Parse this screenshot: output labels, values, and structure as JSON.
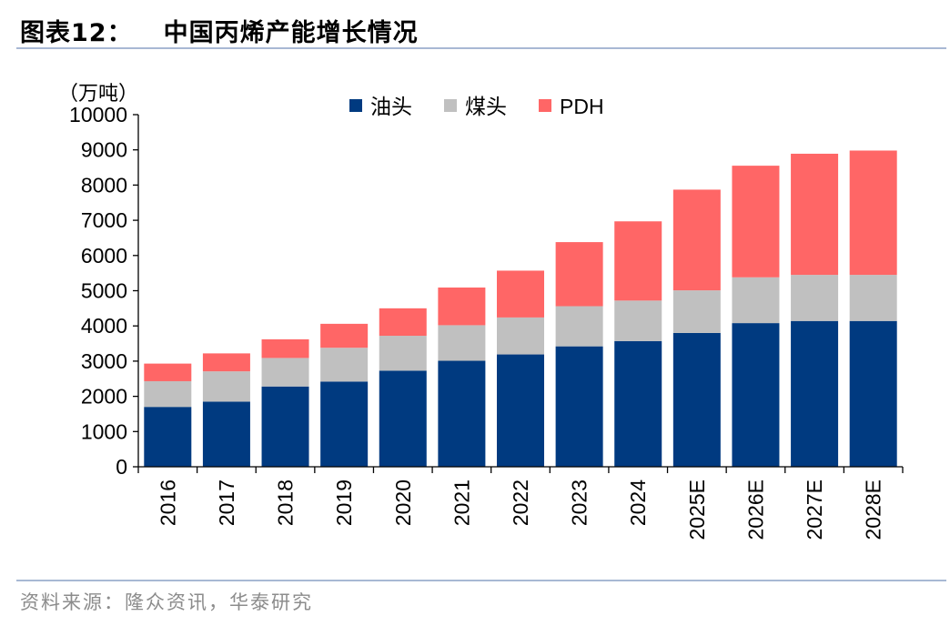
{
  "header": {
    "figure_label": "图表12：",
    "title": "中国丙烯产能增长情况"
  },
  "footer": {
    "source": "资料来源：隆众资讯，华泰研究"
  },
  "chart_data": {
    "type": "bar",
    "stacked": true,
    "unit_label": "（万吨）",
    "ylim": [
      0,
      10000
    ],
    "y_ticks": [
      0,
      1000,
      2000,
      3000,
      4000,
      5000,
      6000,
      7000,
      8000,
      9000,
      10000
    ],
    "categories": [
      "2016",
      "2017",
      "2018",
      "2019",
      "2020",
      "2021",
      "2022",
      "2023",
      "2024",
      "2025E",
      "2026E",
      "2027E",
      "2028E"
    ],
    "series": [
      {
        "name": "油头",
        "color": "#003a80",
        "values": [
          1700,
          1850,
          2280,
          2420,
          2730,
          3010,
          3190,
          3420,
          3570,
          3800,
          4080,
          4140,
          4140
        ]
      },
      {
        "name": "煤头",
        "color": "#c0c0c0",
        "values": [
          730,
          860,
          810,
          960,
          990,
          1010,
          1050,
          1140,
          1150,
          1210,
          1300,
          1310,
          1310
        ]
      },
      {
        "name": "PDH",
        "color": "#ff6666",
        "values": [
          500,
          510,
          530,
          680,
          780,
          1070,
          1330,
          1820,
          2250,
          2860,
          3170,
          3440,
          3530
        ]
      }
    ],
    "legend_position": "top",
    "grid": false
  }
}
